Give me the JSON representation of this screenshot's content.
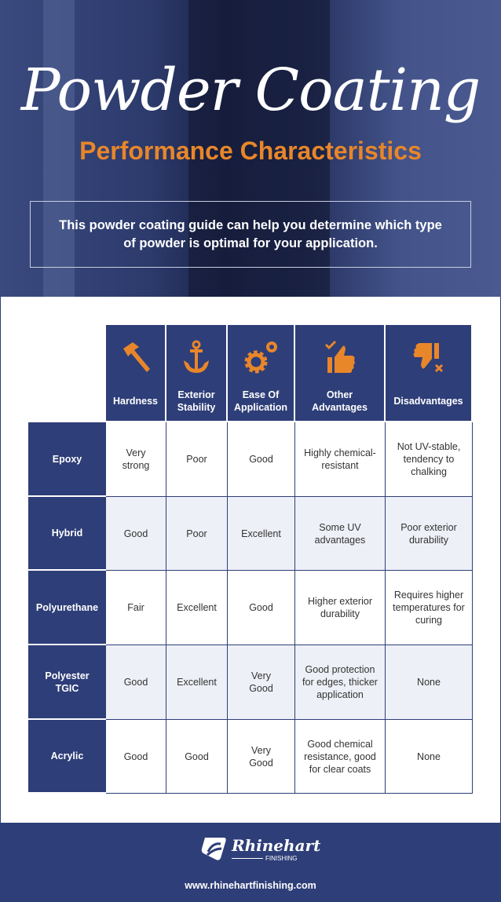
{
  "hero": {
    "title": "Powder Coating",
    "subtitle": "Performance Characteristics",
    "intro": "This powder coating guide can help you determine which type of powder is optimal for your application."
  },
  "colors": {
    "navy": "#2e3e78",
    "orange": "#e8862a",
    "alt_row": "#eef0f7"
  },
  "table": {
    "columns": [
      {
        "label": "Hardness",
        "icon": "hammer-icon"
      },
      {
        "label": "Exterior Stability",
        "icon": "anchor-icon"
      },
      {
        "label": "Ease Of Application",
        "icon": "gears-icon"
      },
      {
        "label": "Other Advantages",
        "icon": "thumbs-up-icon"
      },
      {
        "label": "Disadvantages",
        "icon": "thumbs-down-icon"
      }
    ],
    "rows": [
      {
        "name": "Epoxy",
        "cells": [
          "Very strong",
          "Poor",
          "Good",
          "Highly chemical-resistant",
          "Not UV-stable, tendency to chalking"
        ]
      },
      {
        "name": "Hybrid",
        "cells": [
          "Good",
          "Poor",
          "Excellent",
          "Some UV advantages",
          "Poor exterior durability"
        ]
      },
      {
        "name": "Polyurethane",
        "cells": [
          "Fair",
          "Excellent",
          "Good",
          "Higher exterior durability",
          "Requires higher temperatures for curing"
        ]
      },
      {
        "name": "Polyester TGIC",
        "cells": [
          "Good",
          "Excellent",
          "Very Good",
          "Good protection for edges, thicker application",
          "None"
        ]
      },
      {
        "name": "Acrylic",
        "cells": [
          "Good",
          "Good",
          "Very Good",
          "Good chemical resistance, good for clear coats",
          "None"
        ]
      }
    ]
  },
  "footer": {
    "brand": "Rhinehart",
    "brand_sub": "FINISHING",
    "url": "www.rhinehartfinishing.com"
  }
}
